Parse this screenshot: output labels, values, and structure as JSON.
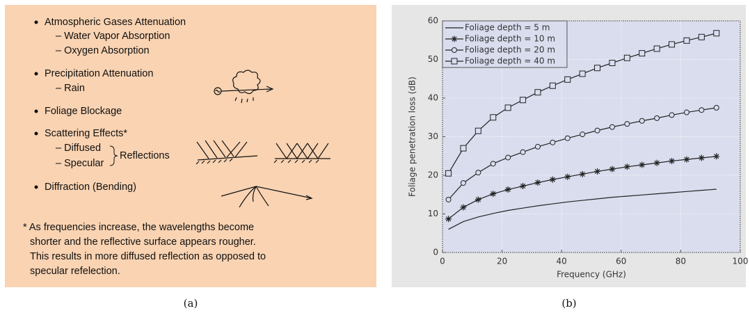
{
  "panel_a": {
    "items": [
      {
        "text": "Atmospheric Gases Attenuation",
        "subitems": [
          "– Water Vapor Absorption",
          "– Oxygen Absorption"
        ]
      },
      {
        "text": "Precipitation Attenuation",
        "subitems": [
          "– Rain"
        ]
      },
      {
        "text": "Foliage Blockage"
      },
      {
        "text": "Scattering Effects*",
        "subitems": [
          "– Diffused",
          "– Specular"
        ],
        "brace_label": "Reflections"
      },
      {
        "text": "Diffraction (Bending)"
      }
    ],
    "footnote": [
      "* As frequencies increase, the wavelengths become",
      "shorter and the reflective surface appears rougher.",
      "This results in more diffused reflection as opposed to",
      "specular refelection."
    ],
    "caption": "(a)"
  },
  "panel_b": {
    "caption": "(b)"
  },
  "chart_data": {
    "type": "line",
    "x_label": "Frequency (GHz)",
    "y_label": "Foliage penetration loss (dB)",
    "x": [
      2,
      7,
      12,
      17,
      22,
      27,
      32,
      37,
      42,
      47,
      52,
      57,
      62,
      67,
      72,
      77,
      82,
      87,
      92
    ],
    "series": [
      {
        "name": "Foliage depth = 5 m",
        "color": "#222222",
        "marker": "none",
        "values": [
          6,
          8,
          9.2,
          10.1,
          10.9,
          11.5,
          12.1,
          12.6,
          13.1,
          13.5,
          13.9,
          14.3,
          14.6,
          14.9,
          15.2,
          15.5,
          15.8,
          16.1,
          16.4
        ]
      },
      {
        "name": "Foliage depth = 10 m",
        "color": "#222222",
        "marker": "star",
        "values": [
          8.7,
          11.7,
          13.7,
          15.2,
          16.3,
          17.2,
          18.1,
          18.9,
          19.6,
          20.3,
          21,
          21.6,
          22.2,
          22.7,
          23.2,
          23.7,
          24.1,
          24.5,
          24.9
        ]
      },
      {
        "name": "Foliage depth = 20 m",
        "color": "#222222",
        "marker": "circle",
        "values": [
          13.7,
          18,
          20.7,
          23,
          24.6,
          26,
          27.4,
          28.5,
          29.6,
          30.6,
          31.6,
          32.5,
          33.3,
          34.1,
          34.8,
          35.6,
          36.3,
          36.9,
          37.5
        ]
      },
      {
        "name": "Foliage depth = 40 m",
        "color": "#222222",
        "marker": "square",
        "values": [
          20.5,
          27,
          31.5,
          35,
          37.5,
          39.5,
          41.5,
          43.2,
          44.8,
          46.3,
          47.8,
          49.1,
          50.4,
          51.6,
          52.8,
          53.9,
          54.9,
          55.8,
          56.8
        ]
      }
    ],
    "xlim": [
      0,
      100
    ],
    "ylim": [
      0,
      60
    ],
    "xticks": [
      0,
      20,
      40,
      60,
      80,
      100
    ],
    "yticks": [
      0,
      10,
      20,
      30,
      40,
      50,
      60
    ],
    "grid": true,
    "legend": "upper-left",
    "plot_background": "#d9ddee"
  }
}
